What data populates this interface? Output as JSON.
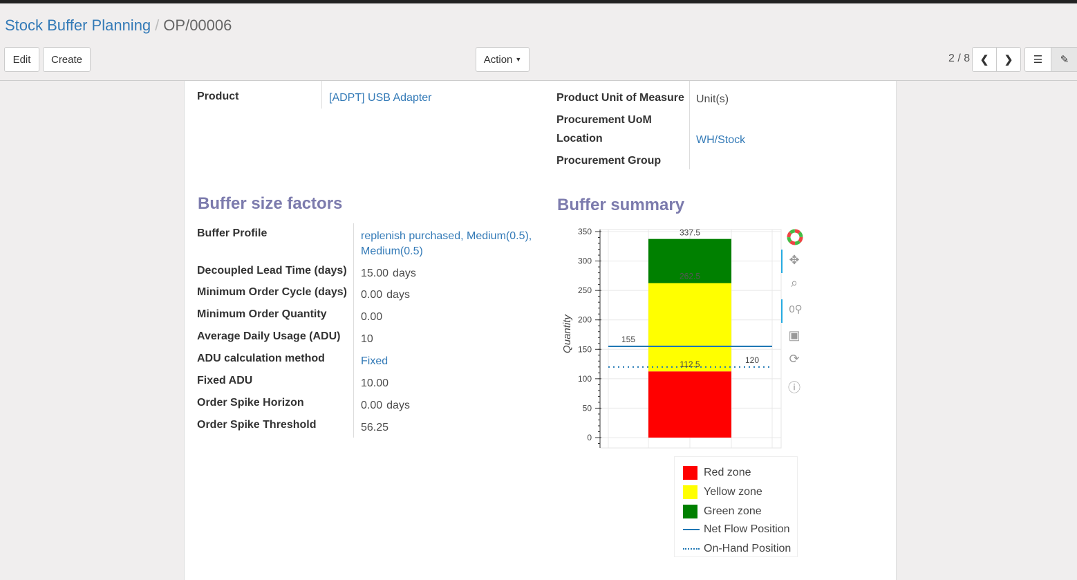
{
  "breadcrumb": {
    "parent": "Stock Buffer Planning",
    "current": "OP/00006"
  },
  "toolbar": {
    "edit": "Edit",
    "create": "Create",
    "action": "Action",
    "pager": "2 / 8"
  },
  "top_fields": {
    "product_label": "Product",
    "product_value": "[ADPT] USB Adapter",
    "uom_label": "Product Unit of Measure",
    "uom_value": "Unit(s)",
    "proc_uom_label": "Procurement UoM",
    "location_label": "Location",
    "location_value": "WH/Stock",
    "group_label": "Procurement Group"
  },
  "factors": {
    "title": "Buffer size factors",
    "rows": [
      {
        "label": "Buffer Profile",
        "value": "replenish purchased, Medium(0.5),\nMedium(0.5)",
        "unit": ""
      },
      {
        "label": "Decoupled Lead Time (days)",
        "value": "15.00",
        "unit": "days"
      },
      {
        "label": "Minimum Order Cycle (days)",
        "value": "0.00",
        "unit": "days"
      },
      {
        "label": "Minimum Order Quantity",
        "value": "0.00",
        "unit": ""
      },
      {
        "label": "Average Daily Usage (ADU)",
        "value": "10",
        "unit": ""
      },
      {
        "label": "ADU calculation method",
        "value": "Fixed",
        "unit": ""
      },
      {
        "label": "Fixed ADU",
        "value": "10.00",
        "unit": ""
      },
      {
        "label": "Order Spike Horizon",
        "value": "0.00",
        "unit": "days"
      },
      {
        "label": "Order Spike Threshold",
        "value": "56.25",
        "unit": ""
      }
    ]
  },
  "summary": {
    "title": "Buffer summary"
  },
  "chart_data": {
    "type": "bar",
    "ylabel": "Quantity",
    "ylim": [
      -10,
      355
    ],
    "yticks": [
      0,
      50,
      100,
      150,
      200,
      250,
      300,
      350
    ],
    "grid": true,
    "stacked_zones": [
      {
        "name": "Red zone",
        "from": 0,
        "to": 112.5,
        "color": "#ff0000"
      },
      {
        "name": "Yellow zone",
        "from": 112.5,
        "to": 262.5,
        "color": "#ffff00"
      },
      {
        "name": "Green zone",
        "from": 262.5,
        "to": 337.5,
        "color": "#008000"
      }
    ],
    "bar_labels": [
      "112.5",
      "262.5",
      "337.5"
    ],
    "lines": [
      {
        "name": "Net Flow Position",
        "value": 155,
        "style": "solid",
        "color": "#1f77b4",
        "label": "155"
      },
      {
        "name": "On-Hand Position",
        "value": 120,
        "style": "dotted",
        "color": "#1f77b4",
        "label": "120"
      }
    ],
    "legend_position": "bottom-right"
  }
}
